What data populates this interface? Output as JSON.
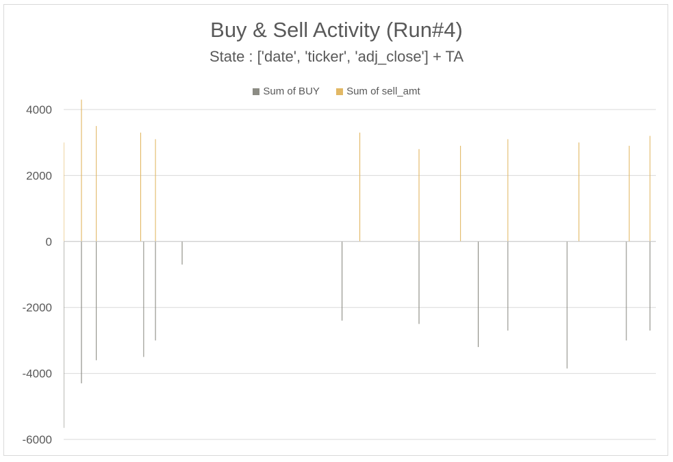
{
  "chart_data": {
    "type": "bar",
    "title": "Buy & Sell Activity (Run#4)",
    "subtitle": "State : ['date', 'ticker', 'adj_close'] + TA",
    "xlabel": "",
    "ylabel": "",
    "ylim": [
      -6000,
      4000
    ],
    "yticks": [
      "4000",
      "2000",
      "0",
      "-2000",
      "-4000",
      "-6000"
    ],
    "grid": true,
    "legend_position": "top",
    "n_points": 1600,
    "series": [
      {
        "name": "Sum of BUY",
        "color": "#8c8c84",
        "envelope_fraction": [
          0.0,
          0.05,
          0.1,
          0.15,
          0.2,
          0.25,
          0.3,
          0.35,
          0.4,
          0.45,
          0.5,
          0.55,
          0.6,
          0.65,
          0.7,
          0.75,
          0.8,
          0.85,
          0.9,
          0.95,
          1.0
        ],
        "typical_values": [
          -1300,
          -1200,
          -1150,
          -900,
          -350,
          -250,
          -300,
          -400,
          -550,
          -850,
          -700,
          -700,
          -900,
          -1000,
          -900,
          -1000,
          -1050,
          -1050,
          -1100,
          -1000,
          -1000
        ],
        "peaks": [
          [
            0.0,
            -5650
          ],
          [
            0.03,
            -4300
          ],
          [
            0.055,
            -3600
          ],
          [
            0.135,
            -3500
          ],
          [
            0.155,
            -3000
          ],
          [
            0.2,
            -700
          ],
          [
            0.47,
            -2400
          ],
          [
            0.6,
            -2500
          ],
          [
            0.7,
            -3200
          ],
          [
            0.75,
            -2700
          ],
          [
            0.85,
            -3850
          ],
          [
            0.95,
            -3000
          ],
          [
            0.99,
            -2700
          ]
        ]
      },
      {
        "name": "Sum of  sell_amt",
        "color": "#e2b865",
        "envelope_fraction": [
          0.0,
          0.05,
          0.1,
          0.15,
          0.2,
          0.25,
          0.3,
          0.35,
          0.4,
          0.45,
          0.5,
          0.55,
          0.6,
          0.65,
          0.7,
          0.75,
          0.8,
          0.85,
          0.9,
          0.95,
          1.0
        ],
        "typical_values": [
          1000,
          1100,
          1000,
          900,
          350,
          250,
          300,
          450,
          600,
          950,
          800,
          800,
          1000,
          1100,
          1000,
          1100,
          1150,
          1200,
          1300,
          1200,
          1100
        ],
        "peaks": [
          [
            0.0,
            3000
          ],
          [
            0.03,
            4300
          ],
          [
            0.055,
            3500
          ],
          [
            0.13,
            3300
          ],
          [
            0.155,
            3100
          ],
          [
            0.5,
            3300
          ],
          [
            0.6,
            2800
          ],
          [
            0.67,
            2900
          ],
          [
            0.75,
            3100
          ],
          [
            0.87,
            3000
          ],
          [
            0.955,
            2900
          ],
          [
            0.99,
            3200
          ]
        ]
      }
    ]
  }
}
